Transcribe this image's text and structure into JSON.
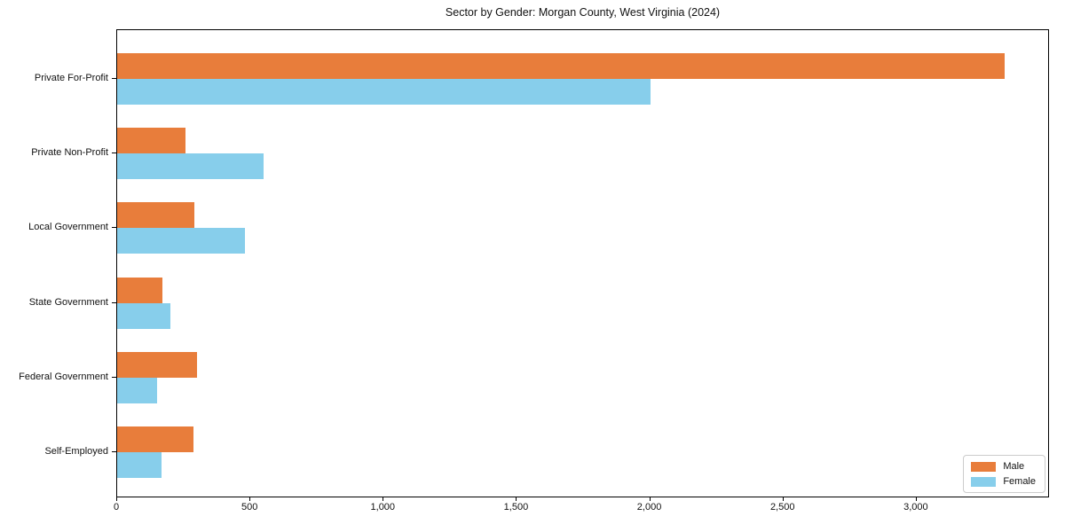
{
  "title": "Sector by Gender: Morgan County, West Virginia (2024)",
  "chart_data": {
    "type": "bar",
    "orientation": "horizontal",
    "title": "Sector by Gender: Morgan County, West Virginia (2024)",
    "xlabel": "",
    "ylabel": "",
    "categories": [
      "Private For-Profit",
      "Private Non-Profit",
      "Local Government",
      "State Government",
      "Federal Government",
      "Self-Employed"
    ],
    "series": [
      {
        "name": "Male",
        "color": "#E87D3B",
        "values": [
          3330,
          255,
          290,
          170,
          300,
          285
        ]
      },
      {
        "name": "Female",
        "color": "#87CEEB",
        "values": [
          2000,
          550,
          480,
          200,
          150,
          165
        ]
      }
    ],
    "xlim": [
      0,
      3500
    ],
    "xticks": [
      0,
      500,
      1000,
      1500,
      2000,
      2500,
      3000
    ],
    "xtick_labels": [
      "0",
      "500",
      "1,000",
      "1,500",
      "2,000",
      "2,500",
      "3,000"
    ],
    "grid": false,
    "legend_position": "lower right",
    "legend_labels": [
      "Male",
      "Female"
    ]
  }
}
